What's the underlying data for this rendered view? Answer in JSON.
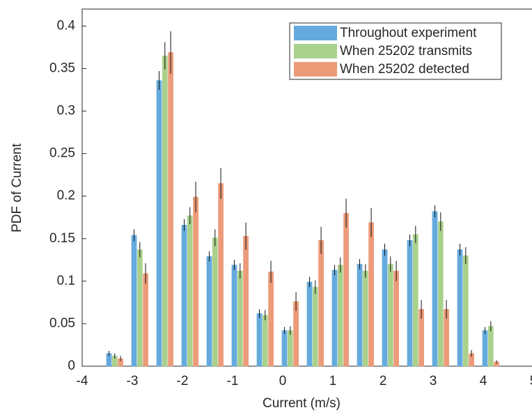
{
  "chart_data": {
    "type": "bar",
    "xlabel": "Current (m/s)",
    "ylabel": "PDF of Current",
    "x": [
      -3.35,
      -2.85,
      -2.35,
      -1.85,
      -1.35,
      -0.85,
      -0.35,
      0.15,
      0.65,
      1.15,
      1.65,
      2.15,
      2.65,
      3.15,
      3.65,
      4.15
    ],
    "series": [
      {
        "name": "Throughout experiment",
        "color": "#65aadd",
        "values": [
          0.015,
          0.154,
          0.336,
          0.166,
          0.129,
          0.119,
          0.062,
          0.042,
          0.099,
          0.113,
          0.12,
          0.137,
          0.148,
          0.182,
          0.137,
          0.042
        ],
        "errors": [
          0.003,
          0.007,
          0.011,
          0.007,
          0.006,
          0.006,
          0.005,
          0.004,
          0.006,
          0.006,
          0.006,
          0.007,
          0.007,
          0.007,
          0.007,
          0.004
        ]
      },
      {
        "name": "When 25202 transmits",
        "color": "#a9d18b",
        "values": [
          0.012,
          0.137,
          0.365,
          0.177,
          0.151,
          0.112,
          0.06,
          0.042,
          0.093,
          0.119,
          0.112,
          0.12,
          0.155,
          0.17,
          0.13,
          0.047
        ],
        "errors": [
          0.003,
          0.009,
          0.016,
          0.01,
          0.01,
          0.009,
          0.006,
          0.005,
          0.008,
          0.009,
          0.008,
          0.009,
          0.01,
          0.011,
          0.01,
          0.006
        ]
      },
      {
        "name": "When 25202 detected",
        "color": "#ec9b79",
        "values": [
          0.009,
          0.109,
          0.369,
          0.199,
          0.215,
          0.153,
          0.111,
          0.076,
          0.148,
          0.18,
          0.169,
          0.112,
          0.067,
          0.067,
          0.015,
          0.005
        ],
        "errors": [
          0.003,
          0.012,
          0.025,
          0.018,
          0.018,
          0.016,
          0.013,
          0.011,
          0.016,
          0.017,
          0.017,
          0.012,
          0.011,
          0.011,
          0.004,
          0.002
        ]
      }
    ],
    "xlim": [
      -4,
      5
    ],
    "xticks": [
      -4,
      -3,
      -2,
      -1,
      0,
      1,
      2,
      3,
      4,
      5
    ],
    "ylim": [
      0,
      0.42
    ],
    "yticks": [
      0,
      0.05,
      0.1,
      0.15,
      0.2,
      0.25,
      0.3,
      0.35,
      0.4
    ],
    "legend": "northeast",
    "grid": false
  }
}
